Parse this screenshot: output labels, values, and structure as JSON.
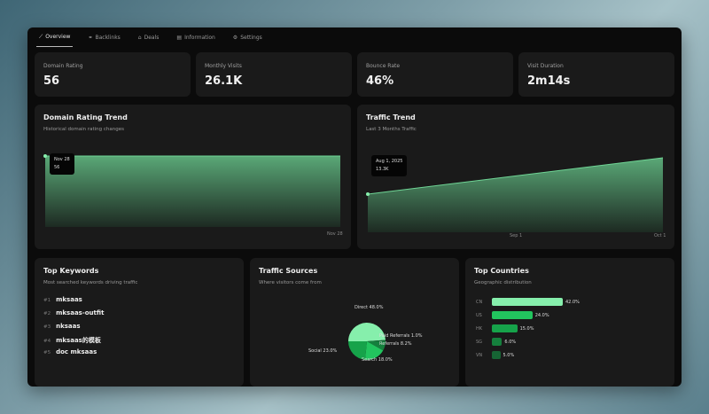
{
  "tabs": [
    {
      "label": "Overview",
      "icon": "chart-icon",
      "active": true
    },
    {
      "label": "Backlinks",
      "icon": "link-icon"
    },
    {
      "label": "Deals",
      "icon": "tag-icon"
    },
    {
      "label": "Information",
      "icon": "document-icon"
    },
    {
      "label": "Settings",
      "icon": "gear-icon"
    }
  ],
  "stats": [
    {
      "label": "Domain Rating",
      "value": "56"
    },
    {
      "label": "Monthly Visits",
      "value": "26.1K"
    },
    {
      "label": "Bounce Rate",
      "value": "46%"
    },
    {
      "label": "Visit Duration",
      "value": "2m14s"
    }
  ],
  "domain_trend": {
    "title": "Domain Rating Trend",
    "subtitle": "Historical domain rating changes",
    "tooltip_date": "Nov 28",
    "tooltip_value": "56",
    "x_label": "Nov 28"
  },
  "traffic_trend": {
    "title": "Traffic Trend",
    "subtitle": "Last 3 Months Traffic",
    "tooltip_date": "Aug 1, 2025",
    "tooltip_value": "13.3K",
    "x_labels": [
      "Sep 1",
      "Oct 1"
    ]
  },
  "keywords": {
    "title": "Top Keywords",
    "subtitle": "Most searched keywords driving traffic",
    "items": [
      {
        "rank": "#1",
        "text": "mksaas"
      },
      {
        "rank": "#2",
        "text": "mksaas-outfit"
      },
      {
        "rank": "#3",
        "text": "nksaas"
      },
      {
        "rank": "#4",
        "text": "mksaas的模板"
      },
      {
        "rank": "#5",
        "text": "doc mksaas"
      }
    ]
  },
  "sources": {
    "title": "Traffic Sources",
    "subtitle": "Where visitors come from"
  },
  "countries": {
    "title": "Top Countries",
    "subtitle": "Geographic distribution"
  },
  "chart_data": [
    {
      "type": "area",
      "title": "Domain Rating Trend",
      "x": [
        "Nov 28"
      ],
      "values": [
        56
      ]
    },
    {
      "type": "area",
      "title": "Traffic Trend",
      "x": [
        "Aug 1, 2025",
        "Sep 1",
        "Oct 1"
      ],
      "values": [
        13.3,
        16.5,
        19.5
      ]
    },
    {
      "type": "pie",
      "title": "Traffic Sources",
      "slices": [
        {
          "label": "Direct 48.0%",
          "name": "Direct",
          "value": 48.0,
          "color": "#86efac"
        },
        {
          "label": "Paid Referrals 1.0%",
          "name": "Paid Referrals",
          "value": 1.0,
          "color": "#166534"
        },
        {
          "label": "Referrals 8.2%",
          "name": "Referrals",
          "value": 8.2,
          "color": "#15803d"
        },
        {
          "label": "Search 18.0%",
          "name": "Search",
          "value": 18.0,
          "color": "#22c55e"
        },
        {
          "label": "Social 23.0%",
          "name": "Social",
          "value": 23.0,
          "color": "#16a34a"
        }
      ]
    },
    {
      "type": "bar",
      "title": "Top Countries",
      "categories": [
        "CN",
        "US",
        "HK",
        "SG",
        "VN"
      ],
      "values": [
        42.0,
        24.0,
        15.0,
        6.0,
        5.0
      ],
      "labels": [
        "42.0%",
        "24.0%",
        "15.0%",
        "6.0%",
        "5.0%"
      ],
      "colors": [
        "#86efac",
        "#22c55e",
        "#16a34a",
        "#15803d",
        "#166534"
      ]
    }
  ]
}
